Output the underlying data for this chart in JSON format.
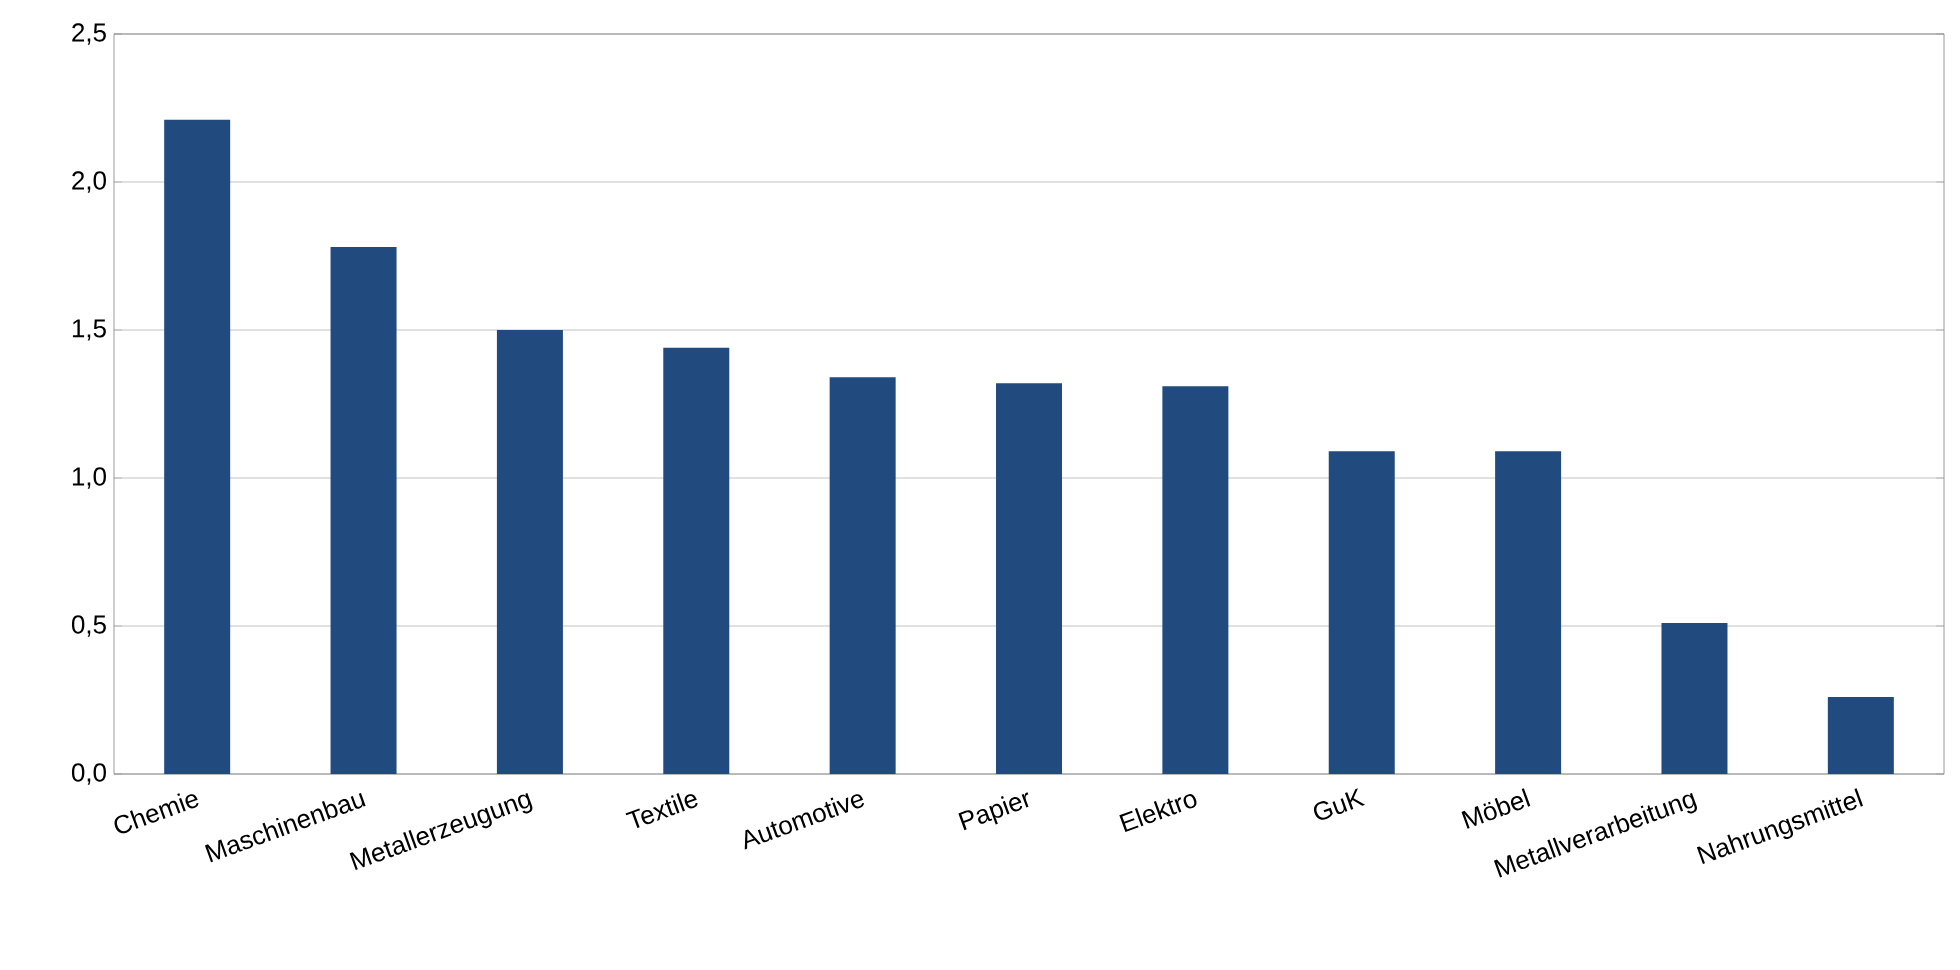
{
  "chart_data": {
    "type": "bar",
    "categories": [
      "Chemie",
      "Maschinenbau",
      "Metallerzeugung",
      "Textile",
      "Automotive",
      "Papier",
      "Elektro",
      "GuK",
      "Möbel",
      "Metallverarbeitung",
      "Nahrungsmittel"
    ],
    "values": [
      2.21,
      1.78,
      1.5,
      1.44,
      1.34,
      1.32,
      1.31,
      1.09,
      1.09,
      0.51,
      0.26
    ],
    "color": "#214a7e",
    "ylim": [
      0,
      2.5
    ],
    "yticks": [
      {
        "value": 0,
        "label": "0,0"
      },
      {
        "value": 0.5,
        "label": "0,5"
      },
      {
        "value": 1,
        "label": "1,0"
      },
      {
        "value": 1.5,
        "label": "1,5"
      },
      {
        "value": 2,
        "label": "2,0"
      },
      {
        "value": 2.5,
        "label": "2,5"
      }
    ],
    "grid": "y"
  }
}
